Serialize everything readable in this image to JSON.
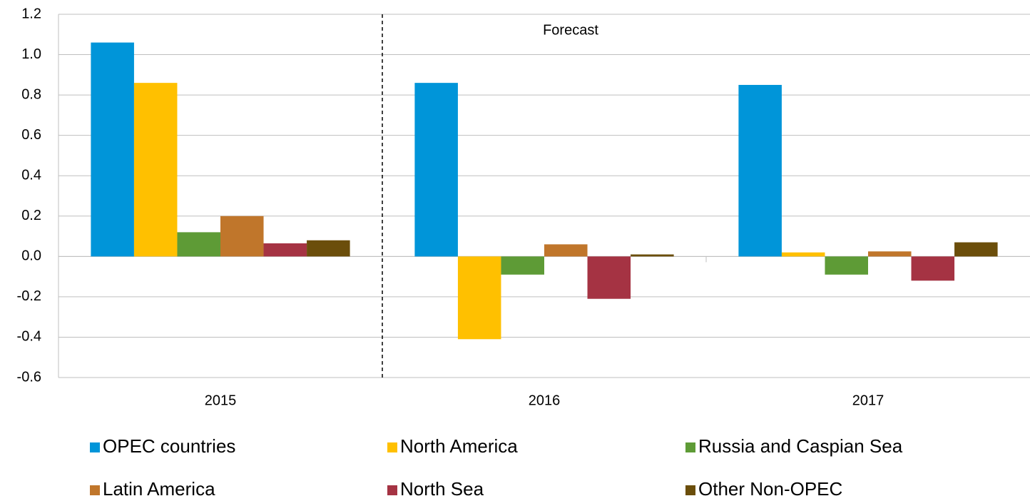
{
  "chart_data": {
    "type": "bar",
    "annotation": "Forecast",
    "categories": [
      "2015",
      "2016",
      "2017"
    ],
    "series": [
      {
        "name": "OPEC countries",
        "color": "#0095d9",
        "values": [
          1.06,
          0.86,
          0.85
        ]
      },
      {
        "name": "North America",
        "color": "#ffc000",
        "values": [
          0.86,
          -0.41,
          0.02
        ]
      },
      {
        "name": "Russia and Caspian Sea",
        "color": "#5e9b36",
        "values": [
          0.12,
          -0.09,
          -0.09
        ]
      },
      {
        "name": "Latin America",
        "color": "#c0762b",
        "values": [
          0.2,
          0.06,
          0.025
        ]
      },
      {
        "name": "North Sea",
        "color": "#a53343",
        "values": [
          0.065,
          -0.21,
          -0.12
        ]
      },
      {
        "name": "Other Non-OPEC",
        "color": "#6b4e0b",
        "values": [
          0.08,
          0.01,
          0.07
        ]
      }
    ],
    "ylim": [
      -0.6,
      1.2
    ],
    "yticks": [
      {
        "value": -0.6,
        "label": "-0.6"
      },
      {
        "value": -0.4,
        "label": "-0.4"
      },
      {
        "value": -0.2,
        "label": "-0.2"
      },
      {
        "value": 0,
        "label": "0.0"
      },
      {
        "value": 0.2,
        "label": "0.2"
      },
      {
        "value": 0.4,
        "label": "0.4"
      },
      {
        "value": 0.6,
        "label": "0.6"
      },
      {
        "value": 0.8,
        "label": "0.8"
      },
      {
        "value": 1.0,
        "label": "1.0"
      },
      {
        "value": 1.2,
        "label": "1.2"
      }
    ],
    "grid": true
  }
}
